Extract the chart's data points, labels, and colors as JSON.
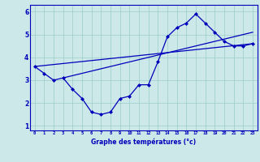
{
  "hours": [
    0,
    1,
    2,
    3,
    4,
    5,
    6,
    7,
    8,
    9,
    10,
    11,
    12,
    13,
    14,
    15,
    16,
    17,
    18,
    19,
    20,
    21,
    22,
    23
  ],
  "temps": [
    3.6,
    3.3,
    3.0,
    3.1,
    2.6,
    2.2,
    1.6,
    1.5,
    1.6,
    2.2,
    2.3,
    2.8,
    2.8,
    3.8,
    4.9,
    5.3,
    5.5,
    5.9,
    5.5,
    5.1,
    4.7,
    4.5,
    4.5,
    4.6
  ],
  "line2_x": [
    0,
    23
  ],
  "line2_y": [
    3.6,
    4.6
  ],
  "line3_x": [
    3,
    23
  ],
  "line3_y": [
    3.1,
    5.1
  ],
  "xlabel": "Graphe des températures (°c)",
  "ylim": [
    0.8,
    6.3
  ],
  "xlim": [
    -0.5,
    23.5
  ],
  "yticks": [
    1,
    2,
    3,
    4,
    5,
    6
  ],
  "xticks": [
    0,
    1,
    2,
    3,
    4,
    5,
    6,
    7,
    8,
    9,
    10,
    11,
    12,
    13,
    14,
    15,
    16,
    17,
    18,
    19,
    20,
    21,
    22,
    23
  ],
  "line_color": "#0000bb",
  "bg_color": "#cce8e8",
  "grid_color": "#99cccc"
}
